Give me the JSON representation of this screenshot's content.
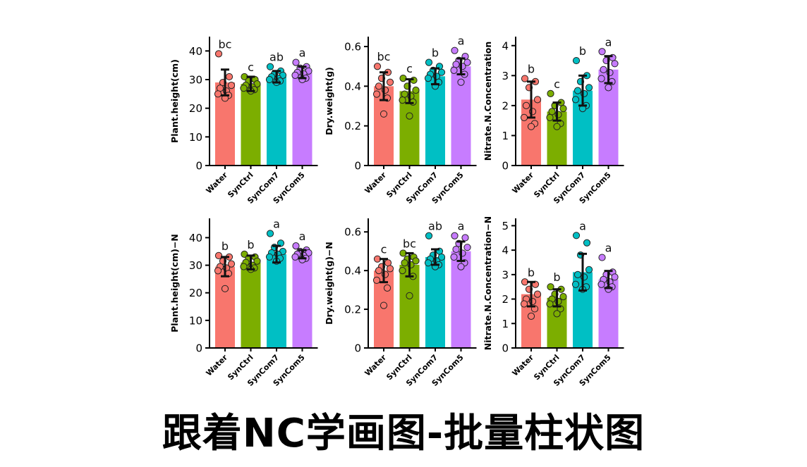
{
  "caption": "跟着NC学画图-批量柱状图",
  "colors": {
    "Water": "#F8766D",
    "SynCtrl": "#7CAE00",
    "SynCom7": "#00BFC4",
    "SynCom5": "#C77CFF"
  },
  "chart_data": [
    {
      "type": "bar",
      "ylabel": "Plant.height(cm)",
      "categories": [
        "Water",
        "SynCtrl",
        "SynCom7",
        "SynCom5"
      ],
      "values": [
        29,
        28.5,
        31,
        32.5
      ],
      "errors": [
        4.5,
        2.5,
        2,
        2
      ],
      "letters": [
        "bc",
        "c",
        "ab",
        "a"
      ],
      "yticks": [
        0,
        10,
        20,
        30,
        40
      ],
      "ylim": [
        0,
        45
      ],
      "points": [
        [
          39,
          31,
          29,
          28,
          27,
          26,
          25,
          24.5,
          23.5
        ],
        [
          31,
          30,
          29.5,
          28.5,
          28,
          27.5,
          27,
          26.5,
          26
        ],
        [
          34.5,
          33,
          32,
          31.5,
          31,
          30.5,
          30,
          29.5,
          29
        ],
        [
          36,
          34.5,
          34,
          33,
          32.5,
          32,
          31.5,
          30.5,
          30
        ]
      ]
    },
    {
      "type": "bar",
      "ylabel": "Dry.weight(g)",
      "categories": [
        "Water",
        "SynCtrl",
        "SynCom7",
        "SynCom5"
      ],
      "values": [
        0.4,
        0.375,
        0.45,
        0.5
      ],
      "errors": [
        0.07,
        0.06,
        0.04,
        0.04
      ],
      "letters": [
        "bc",
        "c",
        "b",
        "a"
      ],
      "yticks": [
        0,
        0.2,
        0.4,
        0.6
      ],
      "ylim": [
        0,
        0.65
      ],
      "points": [
        [
          0.5,
          0.47,
          0.44,
          0.42,
          0.4,
          0.38,
          0.36,
          0.34,
          0.26
        ],
        [
          0.44,
          0.43,
          0.4,
          0.38,
          0.36,
          0.35,
          0.33,
          0.32,
          0.25
        ],
        [
          0.52,
          0.5,
          0.48,
          0.47,
          0.46,
          0.45,
          0.44,
          0.42,
          0.4
        ],
        [
          0.58,
          0.55,
          0.53,
          0.52,
          0.51,
          0.5,
          0.48,
          0.46,
          0.42
        ]
      ]
    },
    {
      "type": "bar",
      "ylabel": "Nitrate.N.Concentration",
      "categories": [
        "Water",
        "SynCtrl",
        "SynCom7",
        "SynCom5"
      ],
      "values": [
        2.2,
        1.8,
        2.5,
        3.2
      ],
      "errors": [
        0.6,
        0.3,
        0.5,
        0.45
      ],
      "letters": [
        "b",
        "c",
        "b",
        "a"
      ],
      "yticks": [
        0,
        1,
        2,
        3,
        4
      ],
      "ylim": [
        0,
        4.3
      ],
      "points": [
        [
          2.9,
          2.8,
          2.6,
          2.2,
          2.0,
          1.8,
          1.6,
          1.4,
          1.3
        ],
        [
          2.4,
          2.1,
          2.0,
          1.9,
          1.8,
          1.7,
          1.6,
          1.4,
          1.3
        ],
        [
          3.5,
          3.0,
          2.8,
          2.6,
          2.5,
          2.4,
          2.2,
          2.0,
          1.9
        ],
        [
          3.8,
          3.6,
          3.5,
          3.4,
          3.2,
          3.1,
          2.9,
          2.8,
          2.6
        ]
      ]
    },
    {
      "type": "bar",
      "ylabel": "Plant.height(cm)−N",
      "categories": [
        "Water",
        "SynCtrl",
        "SynCom7",
        "SynCom5"
      ],
      "values": [
        29.5,
        31,
        34,
        34
      ],
      "errors": [
        3.5,
        2.5,
        3,
        1.5
      ],
      "letters": [
        "b",
        "b",
        "a",
        "a"
      ],
      "yticks": [
        0,
        10,
        20,
        30,
        40
      ],
      "ylim": [
        0,
        47
      ],
      "points": [
        [
          33.5,
          33,
          31.5,
          30.5,
          29.5,
          29,
          28,
          27,
          21.5
        ],
        [
          34,
          33,
          32.5,
          31.5,
          31,
          30,
          29.5,
          29,
          28.5
        ],
        [
          41.5,
          38,
          36.5,
          35,
          34.5,
          34,
          33,
          32.5,
          31.5
        ],
        [
          37,
          35.5,
          35,
          34.5,
          34,
          33.5,
          33,
          32.5,
          32
        ]
      ]
    },
    {
      "type": "bar",
      "ylabel": "Dry.weight(g)−N",
      "categories": [
        "Water",
        "SynCtrl",
        "SynCom7",
        "SynCom5"
      ],
      "values": [
        0.4,
        0.43,
        0.47,
        0.5
      ],
      "errors": [
        0.06,
        0.06,
        0.04,
        0.05
      ],
      "letters": [
        "c",
        "bc",
        "ab",
        "a"
      ],
      "yticks": [
        0,
        0.2,
        0.4,
        0.6
      ],
      "ylim": [
        0,
        0.67
      ],
      "points": [
        [
          0.46,
          0.44,
          0.42,
          0.41,
          0.4,
          0.38,
          0.35,
          0.31,
          0.22
        ],
        [
          0.49,
          0.47,
          0.46,
          0.45,
          0.44,
          0.43,
          0.4,
          0.37,
          0.27
        ],
        [
          0.58,
          0.5,
          0.48,
          0.47,
          0.46,
          0.45,
          0.44,
          0.43,
          0.42
        ],
        [
          0.58,
          0.57,
          0.54,
          0.52,
          0.51,
          0.49,
          0.47,
          0.44,
          0.42
        ]
      ]
    },
    {
      "type": "bar",
      "ylabel": "Nitrate.N.Concentration−N",
      "categories": [
        "Water",
        "SynCtrl",
        "SynCom7",
        "SynCom5"
      ],
      "values": [
        2.2,
        2.05,
        3.1,
        2.8
      ],
      "errors": [
        0.5,
        0.35,
        0.75,
        0.35
      ],
      "letters": [
        "b",
        "b",
        "a",
        "a"
      ],
      "yticks": [
        0,
        1,
        2,
        3,
        4,
        5
      ],
      "ylim": [
        0,
        5.3
      ],
      "points": [
        [
          2.7,
          2.6,
          2.4,
          2.2,
          2.0,
          1.9,
          1.8,
          1.6,
          1.3
        ],
        [
          2.5,
          2.4,
          2.2,
          2.1,
          2.0,
          1.9,
          1.8,
          1.6,
          1.4
        ],
        [
          4.6,
          4.3,
          3.8,
          3.2,
          3.0,
          2.9,
          2.6,
          2.5,
          2.4
        ],
        [
          3.7,
          3.1,
          3.0,
          2.9,
          2.8,
          2.7,
          2.6,
          2.5,
          2.4
        ]
      ]
    }
  ]
}
